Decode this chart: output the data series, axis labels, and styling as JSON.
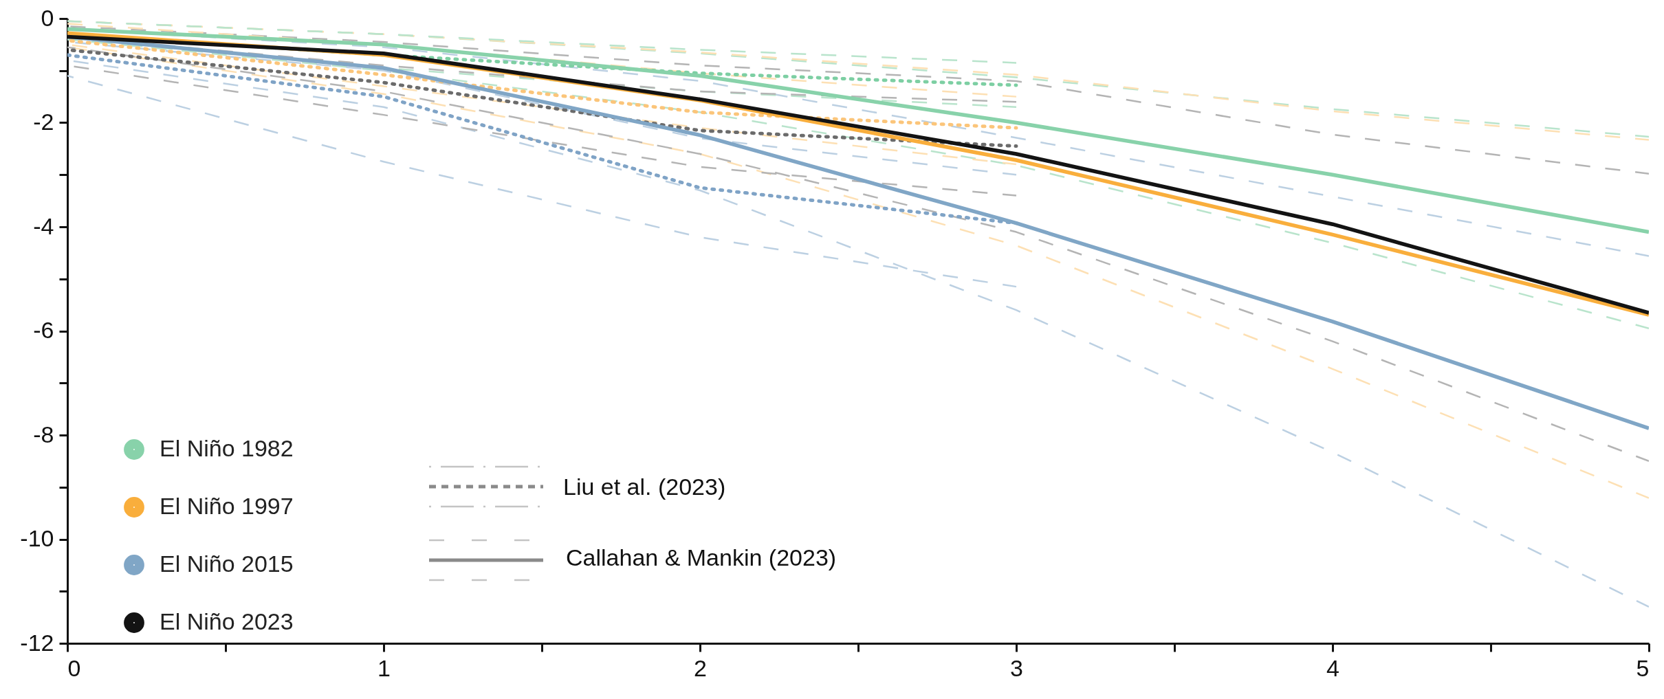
{
  "chart_data": {
    "type": "line",
    "x": [
      0,
      1,
      2,
      3,
      4,
      5
    ],
    "xlim": [
      0,
      5
    ],
    "ylim": [
      -12,
      0
    ],
    "xticks": [
      0,
      {
        "value": 0.5,
        "label": null
      },
      1,
      {
        "value": 1.5,
        "label": null
      },
      2,
      {
        "value": 2.5,
        "label": null
      },
      3,
      {
        "value": 3.5,
        "label": null
      },
      4,
      {
        "value": 4.5,
        "label": null
      },
      5
    ],
    "yticks": [
      -12,
      {
        "value": -11,
        "label": null
      },
      -10,
      {
        "value": -9,
        "label": null
      },
      -8,
      {
        "value": -7,
        "label": null
      },
      -6,
      {
        "value": -5,
        "label": null
      },
      -4,
      {
        "value": -3,
        "label": null
      },
      -2,
      {
        "value": -1,
        "label": null
      },
      0
    ],
    "grid": false,
    "legend": "bottom left",
    "marker": "none",
    "annotations": [
      "Liu et al. (2023)",
      "Callahan & Mankin (2023)"
    ],
    "series": [
      {
        "color": "#b9e4cc",
        "line_style": "dashed",
        "values": [
          -0.05,
          -0.3,
          -0.67,
          -1.13,
          -1.74,
          -2.27
        ]
      },
      {
        "color": "#b9e4cc",
        "line_style": "dashed",
        "values": [
          -0.4,
          -1.0,
          -1.8,
          -2.82,
          -4.31,
          -5.95
        ]
      },
      {
        "color": "#fde0b4",
        "line_style": "dashed",
        "values": [
          -0.05,
          -0.3,
          -0.65,
          -1.08,
          -1.78,
          -2.33
        ]
      },
      {
        "color": "#fde0b4",
        "line_style": "dashed",
        "values": [
          -0.55,
          -1.45,
          -2.6,
          -4.36,
          -6.73,
          -9.21
        ]
      },
      {
        "color": "#b4b4b4",
        "line_style": "dashed",
        "values": [
          -0.15,
          -0.45,
          -0.9,
          -1.2,
          -2.23,
          -2.98
        ]
      },
      {
        "color": "#b4b4b4",
        "line_style": "dashed",
        "values": [
          -0.55,
          -1.4,
          -2.6,
          -4.1,
          -6.2,
          -8.5
        ]
      },
      {
        "color": "#bcd0e2",
        "line_style": "dashed",
        "values": [
          -0.2,
          -0.55,
          -1.2,
          -2.29,
          -3.42,
          -4.56
        ]
      },
      {
        "color": "#bcd0e2",
        "line_style": "dashed",
        "values": [
          -0.8,
          -1.7,
          -3.3,
          -5.6,
          -8.33,
          -11.3
        ]
      },
      {
        "color": "#b9e4cc",
        "line_style": "dashed",
        "x": [
          0,
          1,
          2,
          3
        ],
        "values": [
          -0.05,
          -0.3,
          -0.6,
          -0.85
        ]
      },
      {
        "color": "#b9e4cc",
        "line_style": "dashed",
        "x": [
          0,
          1,
          2,
          3
        ],
        "values": [
          -0.4,
          -0.95,
          -1.4,
          -1.7
        ]
      },
      {
        "color": "#fde0b4",
        "line_style": "dashed",
        "x": [
          0,
          1,
          2,
          3
        ],
        "values": [
          -0.1,
          -0.5,
          -1.05,
          -1.5
        ]
      },
      {
        "color": "#fde0b4",
        "line_style": "dashed",
        "x": [
          0,
          1,
          2,
          3
        ],
        "values": [
          -0.5,
          -1.3,
          -2.1,
          -2.8
        ]
      },
      {
        "color": "#b4b4b4",
        "line_style": "dashed",
        "x": [
          0,
          1,
          2,
          3
        ],
        "values": [
          -0.35,
          -0.9,
          -1.4,
          -1.6
        ]
      },
      {
        "color": "#b4b4b4",
        "line_style": "dashed",
        "x": [
          0,
          1,
          2,
          3
        ],
        "values": [
          -0.9,
          -1.85,
          -2.85,
          -3.4
        ]
      },
      {
        "color": "#bcd0e2",
        "line_style": "dashed",
        "x": [
          0,
          1,
          2,
          3
        ],
        "values": [
          -0.45,
          -1.0,
          -2.3,
          -3.0
        ]
      },
      {
        "color": "#bcd0e2",
        "line_style": "dashed",
        "x": [
          0,
          1,
          2,
          3
        ],
        "values": [
          -1.1,
          -2.75,
          -4.2,
          -5.15
        ]
      },
      {
        "color": "#7dcfa3",
        "line_style": "dotted",
        "x": [
          0,
          1,
          2,
          3
        ],
        "values": [
          -0.3,
          -0.7,
          -1.05,
          -1.28
        ]
      },
      {
        "color": "#fbc57a",
        "line_style": "dotted",
        "x": [
          0,
          1,
          2,
          3
        ],
        "values": [
          -0.42,
          -1.08,
          -1.8,
          -2.1
        ]
      },
      {
        "color": "#6b6b6b",
        "line_style": "dotted",
        "x": [
          0,
          1,
          2,
          3
        ],
        "values": [
          -0.6,
          -1.23,
          -2.15,
          -2.45
        ]
      },
      {
        "color": "#7fa3c6",
        "line_style": "dotted",
        "x": [
          0,
          1,
          2,
          3
        ],
        "values": [
          -0.7,
          -1.5,
          -3.25,
          -3.93
        ]
      },
      {
        "name": "El Niño 1982",
        "color": "#88d2aa",
        "line_style": "solid",
        "values": [
          -0.2,
          -0.5,
          -1.1,
          -2.0,
          -3.0,
          -4.1
        ]
      },
      {
        "name": "El Niño 1997",
        "color": "#f9ae3c",
        "line_style": "solid",
        "values": [
          -0.28,
          -0.7,
          -1.57,
          -2.72,
          -4.15,
          -5.69
        ]
      },
      {
        "name": "El Niño 2015",
        "color": "#80a6c6",
        "line_style": "solid",
        "values": [
          -0.35,
          -0.95,
          -2.24,
          -3.93,
          -5.82,
          -7.87
        ]
      },
      {
        "name": "El Niño 2023",
        "color": "#131313",
        "line_style": "solid",
        "values": [
          -0.35,
          -0.67,
          -1.55,
          -2.6,
          -3.95,
          -5.65
        ]
      }
    ]
  }
}
